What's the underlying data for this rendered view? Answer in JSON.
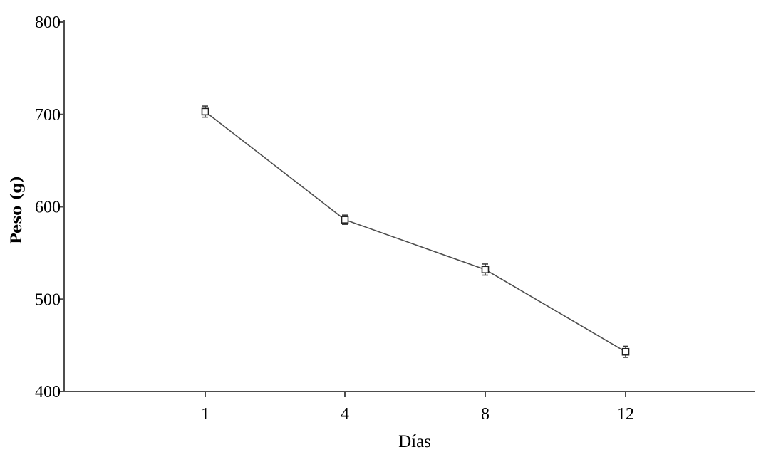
{
  "chart_data": {
    "type": "line",
    "xlabel": "Días",
    "ylabel": "Peso (g)",
    "categories": [
      "1",
      "4",
      "8",
      "12"
    ],
    "y_ticks": [
      "400",
      "500",
      "600",
      "700",
      "800"
    ],
    "ylim": [
      400,
      800
    ],
    "grid": false,
    "series": [
      {
        "values": [
          703,
          586,
          532,
          443
        ],
        "error": [
          6,
          5,
          6,
          6
        ],
        "marker": "open-square",
        "color": "#4d4d4d"
      }
    ]
  }
}
